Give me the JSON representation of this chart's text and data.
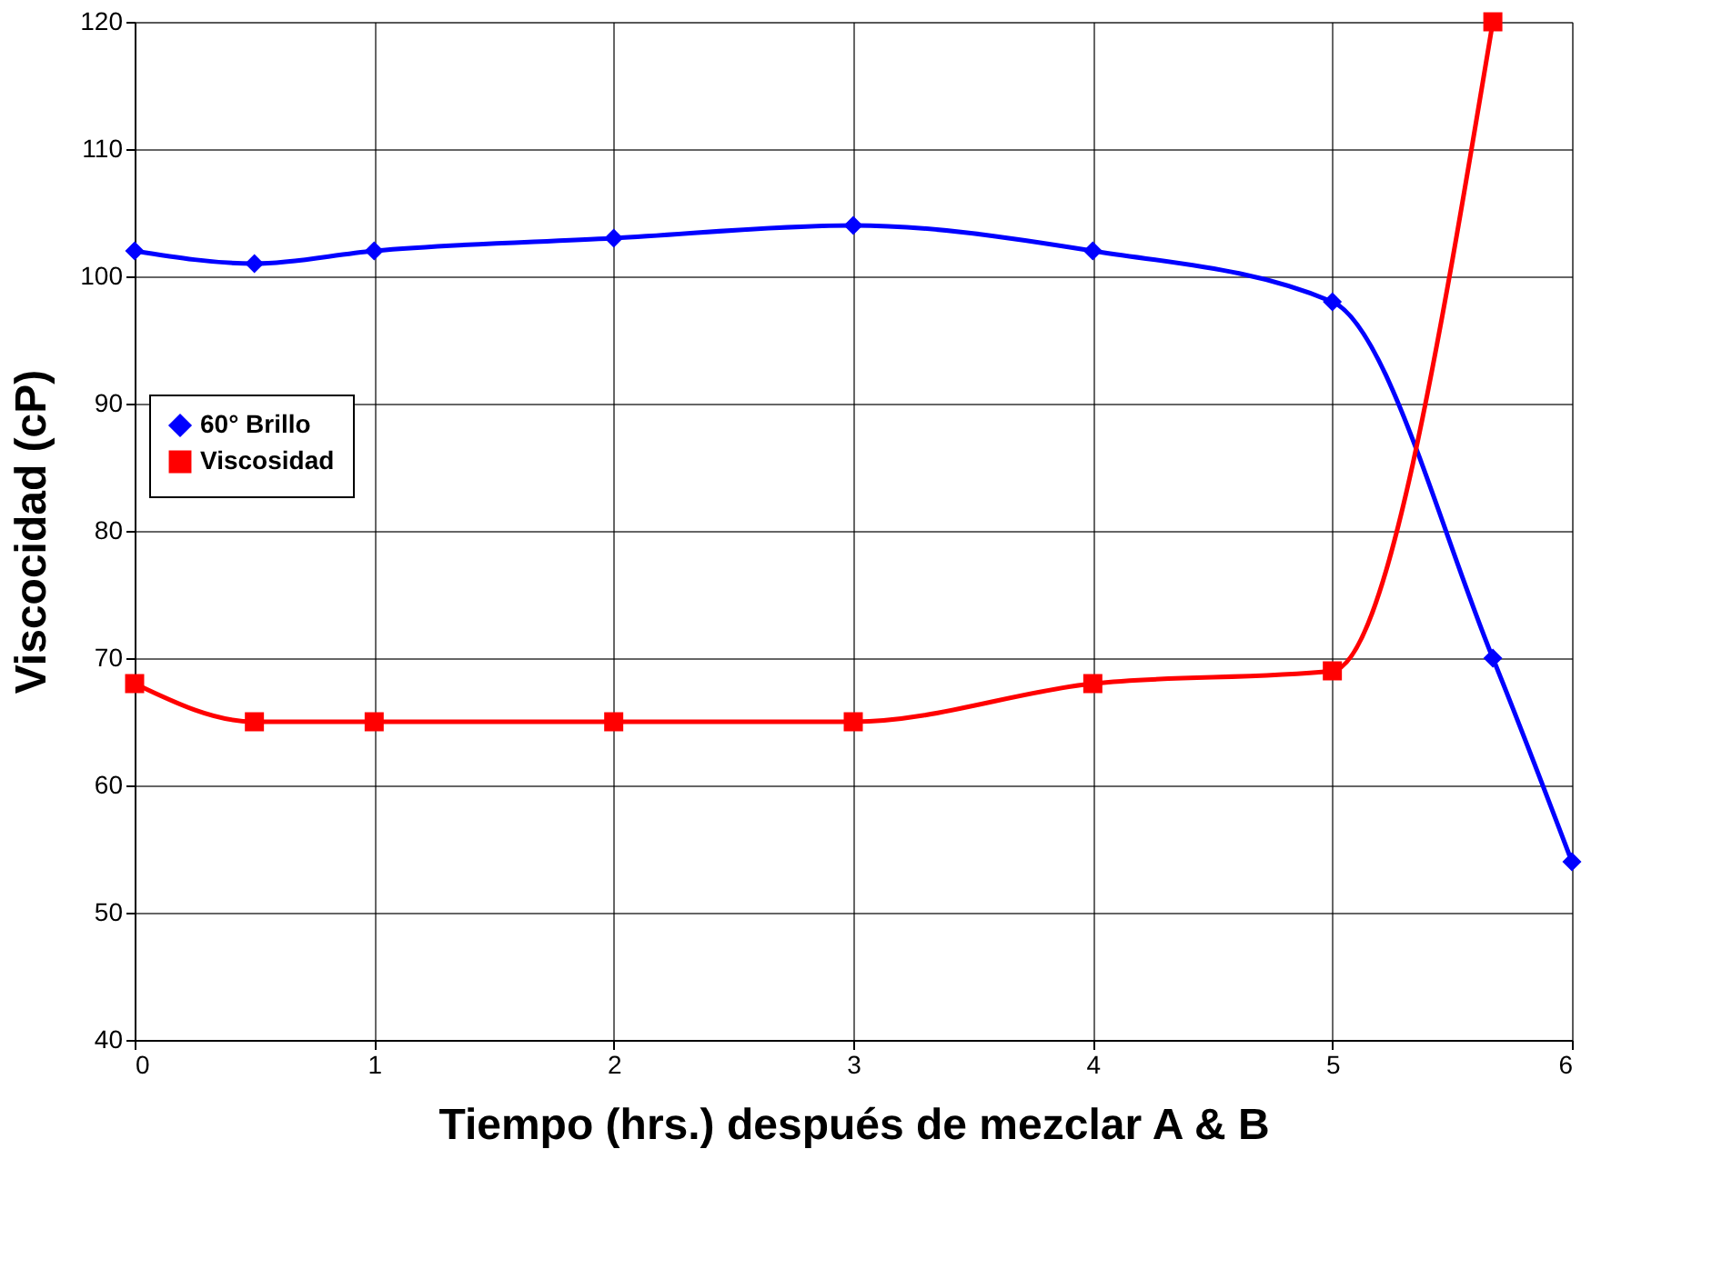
{
  "chart_data": {
    "type": "line",
    "xlabel": "Tiempo (hrs.) después de mezclar A & B",
    "ylabel": "Viscocidad (cP)",
    "xlim": [
      0,
      6
    ],
    "xticks": [
      0,
      1,
      2,
      3,
      4,
      5,
      6
    ],
    "ylim": [
      40,
      120
    ],
    "yticks": [
      40,
      50,
      60,
      70,
      80,
      90,
      100,
      110,
      120
    ],
    "grid": true,
    "legend": "left",
    "series": [
      {
        "name": "60° Brillo",
        "color": "#0000ff",
        "marker": "diamond",
        "line_style": "solid",
        "x": [
          0,
          0.5,
          1,
          2,
          3,
          4,
          5,
          5.67,
          6
        ],
        "values": [
          102,
          101,
          102,
          103,
          104,
          102,
          98,
          70,
          54
        ]
      },
      {
        "name": "Viscosidad",
        "color": "#ff0000",
        "marker": "square",
        "line_style": "solid",
        "x": [
          0,
          0.5,
          1,
          2,
          3,
          4,
          5,
          5.67
        ],
        "values": [
          68,
          65,
          65,
          65,
          65,
          68,
          69,
          120
        ]
      }
    ]
  }
}
